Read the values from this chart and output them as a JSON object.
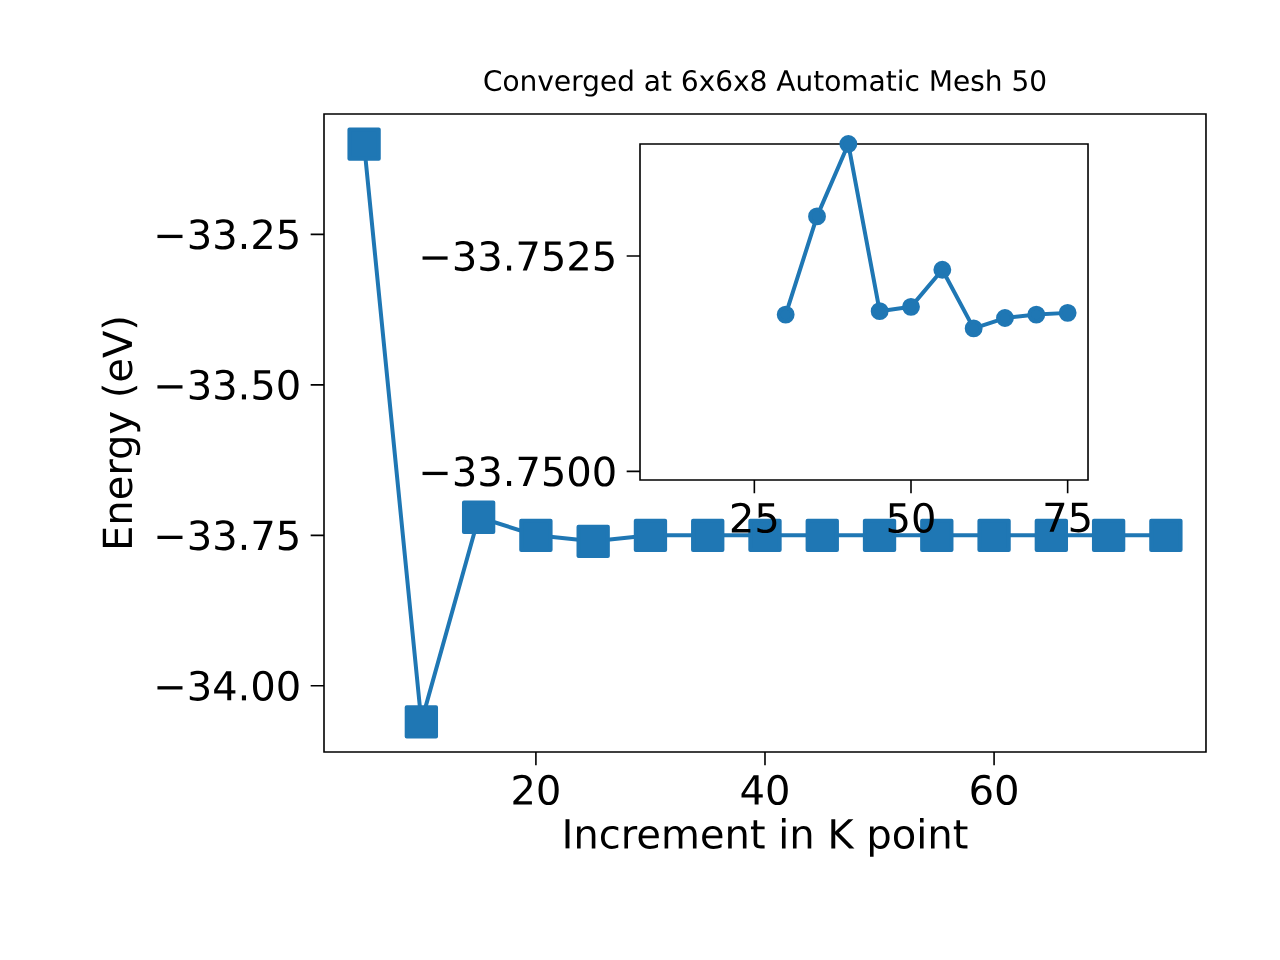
{
  "chart_data": [
    {
      "type": "line",
      "title": "Converged at 6x6x8 Automatic Mesh 50",
      "xlabel": "Increment in K point",
      "ylabel": "Energy (eV)",
      "x": [
        5,
        10,
        15,
        20,
        25,
        30,
        35,
        40,
        45,
        50,
        55,
        60,
        65,
        70,
        75
      ],
      "values": [
        -33.1,
        -34.06,
        -33.72,
        -33.75,
        -33.76,
        -33.75,
        -33.75,
        -33.75,
        -33.75,
        -33.75,
        -33.75,
        -33.75,
        -33.75,
        -33.75,
        -33.75
      ],
      "color": "#1f77b4",
      "marker": "square",
      "line_style": "solid",
      "xlim": [
        1.5,
        78.5
      ],
      "ylim": [
        -34.11,
        -33.05
      ],
      "xticks": [
        20,
        40,
        60
      ],
      "yticks": [
        {
          "value": -34,
          "label": "−34.00"
        },
        {
          "value": -33.75,
          "label": "−33.75"
        },
        {
          "value": -33.5,
          "label": "−33.50"
        },
        {
          "value": -33.25,
          "label": "−33.25"
        }
      ]
    },
    {
      "type": "line",
      "x": [
        30,
        35,
        40,
        45,
        50,
        55,
        60,
        65,
        70,
        75
      ],
      "values": [
        -33.75182,
        -33.75296,
        -33.7538,
        -33.75186,
        -33.75191,
        -33.75234,
        -33.75166,
        -33.75178,
        -33.75182,
        -33.75184
      ],
      "color": "#1f77b4",
      "marker": "circle",
      "line_style": "solid",
      "xlim": [
        6.75,
        78.25
      ],
      "ylim": [
        -33.7499,
        -33.7538
      ],
      "xticks": [
        25,
        50,
        75
      ],
      "yticks": [
        {
          "value": -33.7525,
          "label": "−33.7525"
        },
        {
          "value": -33.75,
          "label": "−33.7500"
        }
      ]
    }
  ]
}
